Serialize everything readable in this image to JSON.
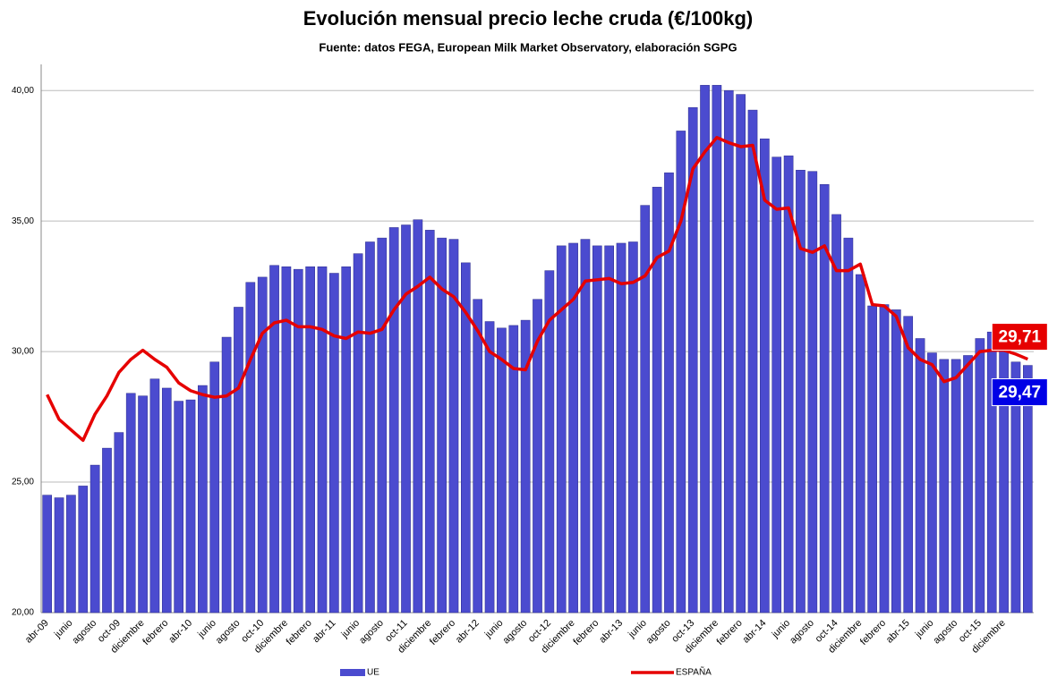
{
  "chart_data": {
    "type": "bar+line",
    "title": "Evolución mensual precio leche cruda (€/100kg)",
    "subtitle": "Fuente: datos FEGA, European Milk Market Observatory,  elaboración SGPG",
    "categories": [
      "abr-09",
      null,
      "junio",
      null,
      "agosto",
      null,
      "oct-09",
      null,
      "diciembre",
      null,
      "febrero",
      null,
      "abr-10",
      null,
      "junio",
      null,
      "agosto",
      null,
      "oct-10",
      null,
      "diciembre",
      null,
      "febrero",
      null,
      "abr-11",
      null,
      "junio",
      null,
      "agosto",
      null,
      "oct-11",
      null,
      "diciembre",
      null,
      "febrero",
      null,
      "abr-12",
      null,
      "junio",
      null,
      "agosto",
      null,
      "oct-12",
      null,
      "diciembre",
      null,
      "febrero",
      null,
      "abr-13",
      null,
      "junio",
      null,
      "agosto",
      null,
      "oct-13",
      null,
      "diciembre",
      null,
      "febrero",
      null,
      "abr-14",
      null,
      "junio",
      null,
      "agosto",
      null,
      "oct-14",
      null,
      "diciembre",
      null,
      "febrero",
      null,
      "abr-15",
      null,
      "junio",
      null,
      "agosto",
      null,
      "oct-15",
      null,
      "diciembre",
      null,
      null
    ],
    "series": [
      {
        "name": "UE",
        "type": "bar",
        "color": "#4b4bcf",
        "values": [
          24.5,
          24.4,
          24.5,
          24.85,
          25.65,
          26.3,
          26.9,
          28.4,
          28.3,
          28.95,
          28.6,
          28.1,
          28.15,
          28.7,
          29.6,
          30.55,
          31.7,
          32.65,
          32.85,
          33.3,
          33.25,
          33.15,
          33.25,
          33.25,
          33.0,
          33.25,
          33.75,
          34.2,
          34.35,
          34.75,
          34.85,
          35.05,
          34.65,
          34.35,
          34.3,
          33.4,
          32.0,
          31.15,
          30.9,
          31.0,
          31.2,
          32.0,
          33.1,
          34.05,
          34.15,
          34.3,
          34.05,
          34.05,
          34.15,
          34.2,
          35.6,
          36.3,
          36.85,
          38.45,
          39.35,
          40.2,
          40.2,
          40.0,
          39.85,
          39.25,
          38.15,
          37.45,
          37.5,
          36.95,
          36.9,
          36.4,
          35.25,
          34.35,
          32.95,
          31.75,
          31.8,
          31.6,
          31.35,
          30.5,
          29.95,
          29.7,
          29.7,
          29.85,
          30.5,
          30.75,
          30.8,
          29.6,
          29.47
        ],
        "value_labels": [
          null,
          null,
          null,
          null,
          null,
          null,
          null,
          null,
          null,
          null,
          null,
          null,
          null,
          null,
          null,
          null,
          null,
          null,
          null,
          null,
          null,
          null,
          null,
          null,
          null,
          null,
          null,
          null,
          null,
          null,
          null,
          null,
          null,
          null,
          null,
          null,
          null,
          null,
          null,
          null,
          null,
          null,
          null,
          null,
          null,
          null,
          null,
          null,
          null,
          null,
          null,
          null,
          null,
          null,
          null,
          null,
          null,
          null,
          null,
          null,
          null,
          null,
          null,
          null,
          null,
          null,
          null,
          null,
          null,
          null,
          null,
          null,
          null,
          null,
          null,
          null,
          null,
          null,
          null,
          null,
          null,
          null,
          "29,47"
        ],
        "label_color": "#0000e6"
      },
      {
        "name": "ESPAÑA",
        "type": "line",
        "color": "#e60000",
        "values": [
          28.35,
          27.4,
          27.0,
          26.6,
          27.6,
          28.3,
          29.2,
          29.7,
          30.05,
          29.7,
          29.4,
          28.8,
          28.5,
          28.35,
          28.25,
          28.3,
          28.6,
          29.7,
          30.7,
          31.1,
          31.2,
          30.95,
          30.95,
          30.85,
          30.6,
          30.5,
          30.75,
          30.7,
          30.85,
          31.6,
          32.2,
          32.5,
          32.85,
          32.4,
          32.1,
          31.5,
          30.8,
          30.0,
          29.7,
          29.35,
          29.3,
          30.4,
          31.2,
          31.6,
          32.0,
          32.7,
          32.75,
          32.8,
          32.6,
          32.65,
          32.9,
          33.6,
          33.85,
          35.0,
          37.0,
          37.65,
          38.2,
          38.0,
          37.85,
          37.9,
          35.8,
          35.45,
          35.5,
          33.95,
          33.8,
          34.05,
          33.1,
          33.1,
          33.35,
          31.8,
          31.75,
          31.35,
          30.15,
          29.7,
          29.5,
          28.85,
          29.0,
          29.5,
          30.0,
          30.05,
          30.05,
          29.9,
          29.71
        ],
        "value_labels": [
          null,
          null,
          null,
          null,
          null,
          null,
          null,
          null,
          null,
          null,
          null,
          null,
          null,
          null,
          null,
          null,
          null,
          null,
          null,
          null,
          null,
          null,
          null,
          null,
          null,
          null,
          null,
          null,
          null,
          null,
          null,
          null,
          null,
          null,
          null,
          null,
          null,
          null,
          null,
          null,
          null,
          null,
          null,
          null,
          null,
          null,
          null,
          null,
          null,
          null,
          null,
          null,
          null,
          null,
          null,
          null,
          null,
          null,
          null,
          null,
          null,
          null,
          null,
          null,
          null,
          null,
          null,
          null,
          null,
          null,
          null,
          null,
          null,
          null,
          null,
          null,
          null,
          null,
          null,
          null,
          null,
          null,
          "29,71"
        ],
        "label_color": "#e60000"
      }
    ],
    "ylim": [
      20,
      41
    ],
    "yticks": [
      {
        "value": 20,
        "label": "20,00"
      },
      {
        "value": 25,
        "label": "25,00"
      },
      {
        "value": 30,
        "label": "30,00"
      },
      {
        "value": 35,
        "label": "35,00"
      },
      {
        "value": 40,
        "label": "40,00"
      }
    ],
    "grid": true
  }
}
